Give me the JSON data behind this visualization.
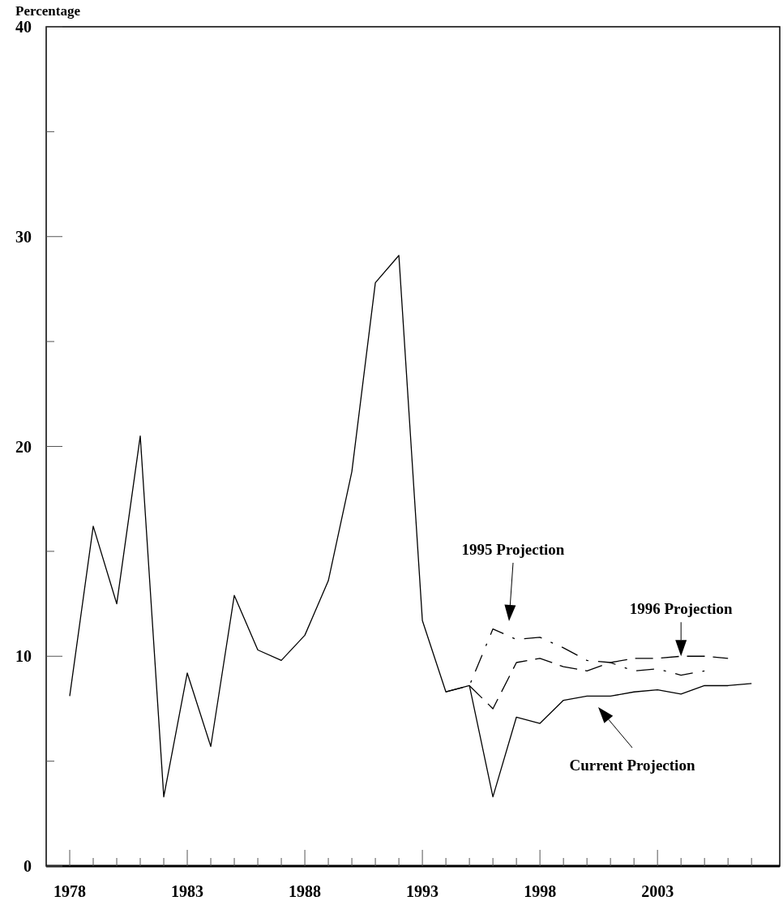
{
  "chart_data": {
    "type": "line",
    "ylabel": "Percentage",
    "x": [
      1978,
      1979,
      1980,
      1981,
      1982,
      1983,
      1984,
      1985,
      1986,
      1987,
      1988,
      1989,
      1990,
      1991,
      1992,
      1993,
      1994,
      1995,
      1996,
      1997,
      1998,
      1999,
      2000,
      2001,
      2002,
      2003,
      2004,
      2005,
      2006,
      2007
    ],
    "series": [
      {
        "color": "#000000",
        "line_style": "solid",
        "values": [
          8.1,
          16.2,
          12.5,
          20.5,
          3.3,
          9.2,
          5.7,
          12.9,
          10.3,
          9.8,
          11.0,
          13.6,
          18.8,
          27.8,
          29.1,
          11.7,
          8.3,
          8.6,
          3.3,
          7.1,
          6.8,
          7.9,
          8.1,
          8.1,
          8.3,
          8.4,
          8.2,
          8.6,
          8.6,
          8.7
        ]
      },
      {
        "color": "#000000",
        "line_style": "dotted",
        "x": [
          1994,
          1995,
          1996,
          1997,
          1998,
          1999,
          2000,
          2001,
          2002,
          2003,
          2004,
          2005
        ],
        "values": [
          8.3,
          8.6,
          11.3,
          10.8,
          10.9,
          10.4,
          9.8,
          9.7,
          9.3,
          9.4,
          9.1,
          9.3
        ]
      },
      {
        "color": "#000000",
        "line_style": "dashed",
        "x": [
          1995,
          1996,
          1997,
          1998,
          1999,
          2000,
          2001,
          2002,
          2003,
          2004,
          2005,
          2006
        ],
        "values": [
          8.6,
          7.5,
          9.7,
          9.9,
          9.5,
          9.3,
          9.7,
          9.9,
          9.9,
          10.0,
          10.0,
          9.9
        ]
      }
    ],
    "xlim": [
      1977,
      2008.2
    ],
    "xticks": [
      1978,
      {
        "value": 1979,
        "label": null
      },
      {
        "value": 1980,
        "label": null
      },
      {
        "value": 1981,
        "label": null
      },
      {
        "value": 1982,
        "label": null
      },
      1983,
      {
        "value": 1984,
        "label": null
      },
      {
        "value": 1985,
        "label": null
      },
      {
        "value": 1986,
        "label": null
      },
      {
        "value": 1987,
        "label": null
      },
      1988,
      {
        "value": 1989,
        "label": null
      },
      {
        "value": 1990,
        "label": null
      },
      {
        "value": 1991,
        "label": null
      },
      {
        "value": 1992,
        "label": null
      },
      1993,
      {
        "value": 1994,
        "label": null
      },
      {
        "value": 1995,
        "label": null
      },
      {
        "value": 1996,
        "label": null
      },
      {
        "value": 1997,
        "label": null
      },
      1998,
      {
        "value": 1999,
        "label": null
      },
      {
        "value": 2000,
        "label": null
      },
      {
        "value": 2001,
        "label": null
      },
      {
        "value": 2002,
        "label": null
      },
      2003,
      {
        "value": 2004,
        "label": null
      },
      {
        "value": 2005,
        "label": null
      },
      {
        "value": 2006,
        "label": null
      },
      {
        "value": 2007,
        "label": null
      }
    ],
    "ylim": [
      0,
      40
    ],
    "yticks": [
      0,
      {
        "value": 5,
        "label": null
      },
      10,
      {
        "value": 15,
        "label": null
      },
      20,
      {
        "value": 25,
        "label": null
      },
      30,
      {
        "value": 35,
        "label": null
      },
      40
    ],
    "grid": false,
    "marker": "none",
    "annotations": [
      "1995 Projection",
      {
        "text": "1996 Projection",
        "x": 2004,
        "y": 10.0
      },
      "Current Projection"
    ]
  }
}
